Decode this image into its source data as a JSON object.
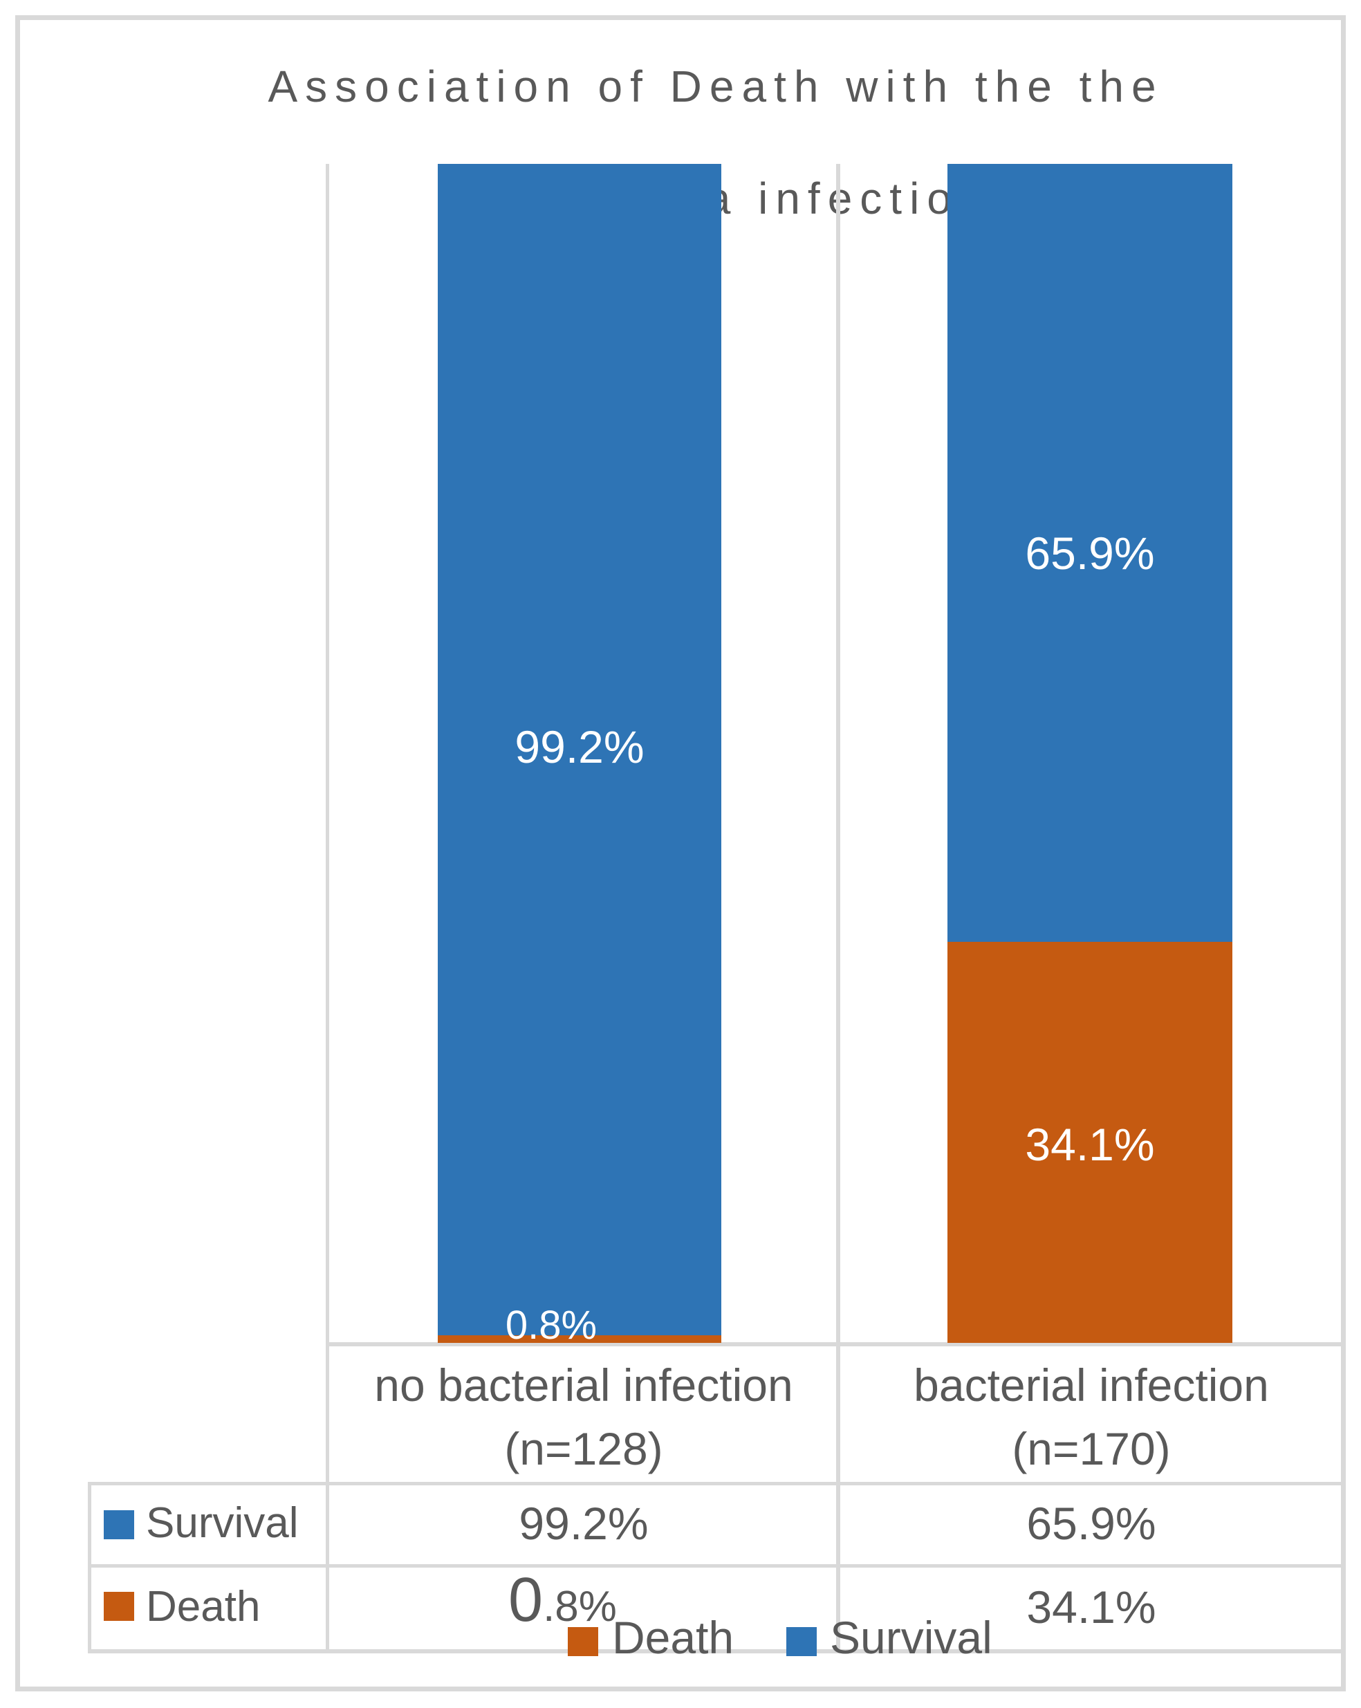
{
  "title": {
    "line1": "Association of Death with the the",
    "line2": "bacteria infection"
  },
  "colors": {
    "survival_blue": "#2e74b5",
    "death_orange": "#c55a11",
    "gridline_gray": "#d9d9d9",
    "text_gray": "#595959",
    "bar_label_white": "#ffffff"
  },
  "chart_data": {
    "type": "bar",
    "stacked": true,
    "orientation": "vertical",
    "title": "Association of Death with the the bacteria infection",
    "categories": [
      "no bacterial infection (n=128)",
      "bacterial infection (n=170)"
    ],
    "series": [
      {
        "name": "Survival",
        "values": [
          99.2,
          65.9
        ],
        "color": "#2e74b5"
      },
      {
        "name": "Death",
        "values": [
          0.8,
          34.1
        ],
        "color": "#c55a11"
      }
    ],
    "value_format": "percent",
    "ylim": [
      0,
      100
    ],
    "grid": false,
    "legend_position": "bottom",
    "data_table_shown": true
  },
  "bar_labels": {
    "bar1_survival": "99.2%",
    "bar1_death": "0.8%",
    "bar2_survival": "65.9%",
    "bar2_death": "34.1%"
  },
  "category_labels": {
    "cat1_line1": "no bacterial infection",
    "cat1_line2": "(n=128)",
    "cat2_line1": "bacterial infection",
    "cat2_line2": "(n=170)"
  },
  "table": {
    "survival_key": "Survival",
    "death_key": "Death",
    "survival_col1": "99.2%",
    "survival_col2": "65.9%",
    "death_col1_zero": "0",
    "death_col1_rest": ".8%",
    "death_col2": "34.1%"
  },
  "legend": {
    "death_label": "Death",
    "survival_label": "Survival"
  }
}
